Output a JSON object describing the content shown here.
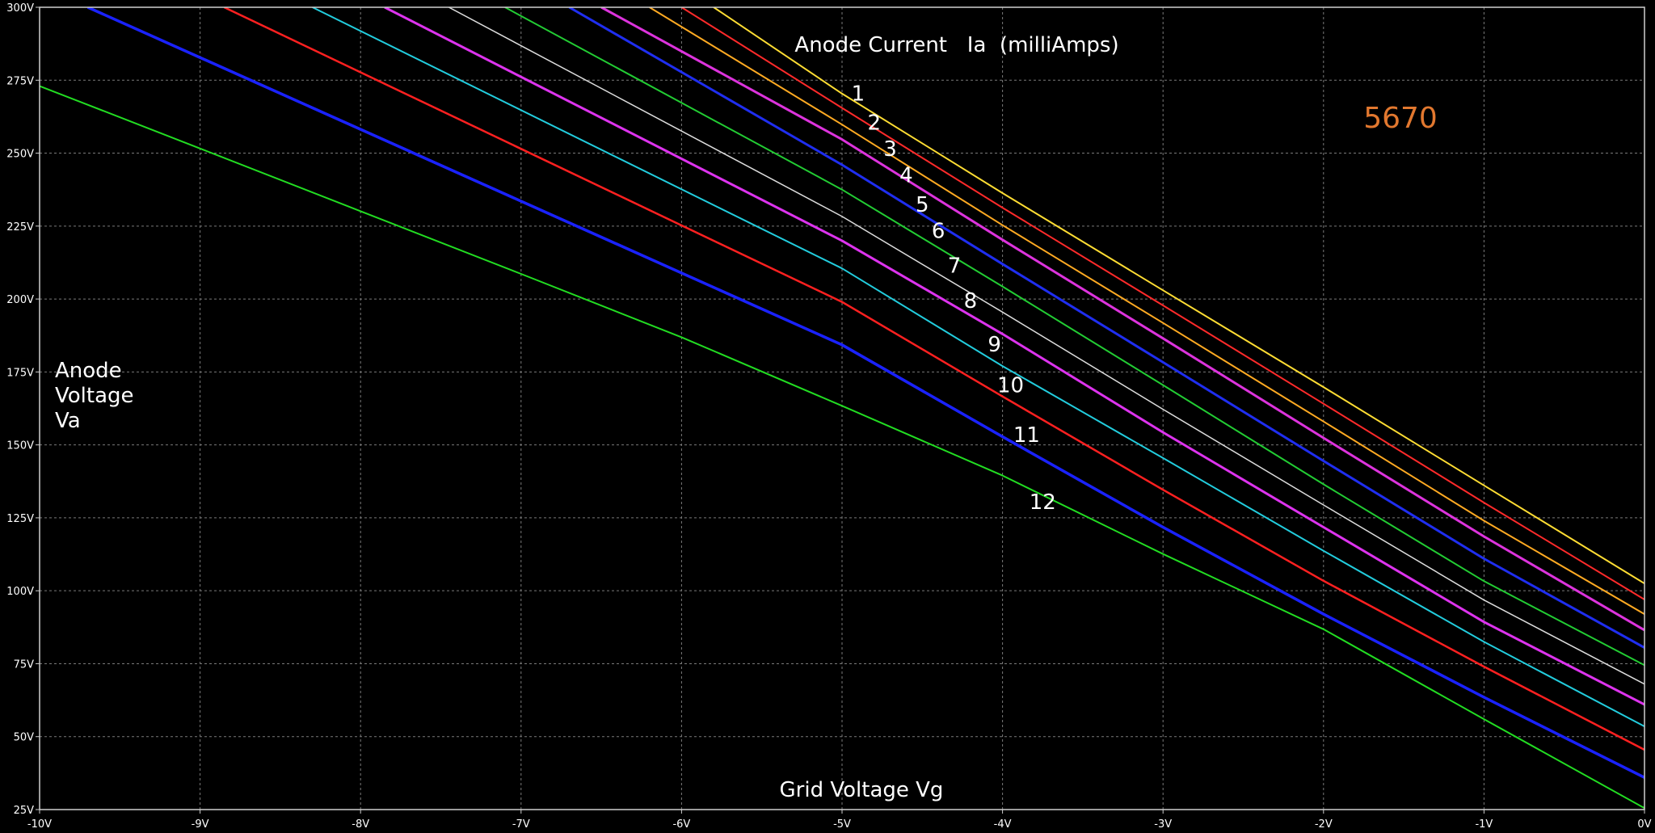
{
  "chart_data": {
    "type": "line",
    "title": "Anode Current   Ia  (milliAmps)",
    "xlabel": "Grid Voltage Vg",
    "ylabel_lines": [
      "Anode",
      "Voltage",
      "Va"
    ],
    "tube_label": "5670",
    "tube_label_color": "#e2782f",
    "background": "#000000",
    "grid": true,
    "xlim": [
      -10,
      0
    ],
    "ylim": [
      25,
      300
    ],
    "x_ticks": [
      -10,
      -9,
      -8,
      -7,
      -6,
      -5,
      -4,
      -3,
      -2,
      -1,
      0
    ],
    "x_tick_labels": [
      "-10V",
      "-9V",
      "-8V",
      "-7V",
      "-6V",
      "-5V",
      "-4V",
      "-3V",
      "-2V",
      "-1V",
      "0V"
    ],
    "y_ticks": [
      25,
      50,
      75,
      100,
      125,
      150,
      175,
      200,
      225,
      250,
      275,
      300
    ],
    "y_tick_labels": [
      "25V",
      "50V",
      "75V",
      "100V",
      "125V",
      "150V",
      "175V",
      "200V",
      "225V",
      "250V",
      "275V",
      "300V"
    ],
    "series": [
      {
        "name": "1",
        "color": "#ffdd33",
        "width": 2,
        "label_at": [
          -4.9,
          268
        ],
        "points": [
          [
            -5.8,
            300
          ],
          [
            -5,
            270.4
          ],
          [
            -4,
            236.3
          ],
          [
            -3,
            203.0
          ],
          [
            -2,
            169.8
          ],
          [
            -1,
            136.1
          ],
          [
            0,
            102.5
          ]
        ]
      },
      {
        "name": "2",
        "color": "#ff2a2a",
        "width": 2,
        "label_at": [
          -4.8,
          258
        ],
        "points": [
          [
            -6.0,
            300
          ],
          [
            -5,
            265.5
          ],
          [
            -4,
            231.3
          ],
          [
            -3,
            197.8
          ],
          [
            -2,
            164.1
          ],
          [
            -1,
            130.2
          ],
          [
            0,
            97.0
          ]
        ]
      },
      {
        "name": "3",
        "color": "#ffaa22",
        "width": 2,
        "label_at": [
          -4.7,
          249
        ],
        "points": [
          [
            -6.2,
            300
          ],
          [
            -5,
            259.8
          ],
          [
            -4,
            225.3
          ],
          [
            -3,
            191.8
          ],
          [
            -2,
            158.0
          ],
          [
            -1,
            124.0
          ],
          [
            0,
            92.0
          ]
        ]
      },
      {
        "name": "4",
        "color": "#dd33dd",
        "width": 3,
        "label_at": [
          -4.6,
          240
        ],
        "points": [
          [
            -6.5,
            300
          ],
          [
            -5,
            254.7
          ],
          [
            -4,
            220.3
          ],
          [
            -3,
            186.5
          ],
          [
            -2,
            152.4
          ],
          [
            -1,
            118.6
          ],
          [
            0,
            86.5
          ]
        ]
      },
      {
        "name": "5",
        "color": "#1f2ef0",
        "width": 3,
        "label_at": [
          -4.5,
          230
        ],
        "points": [
          [
            -6.7,
            300
          ],
          [
            -5,
            246.0
          ],
          [
            -4,
            212.0
          ],
          [
            -3,
            178.3
          ],
          [
            -2,
            144.5
          ],
          [
            -1,
            111.0
          ],
          [
            0,
            80.5
          ]
        ]
      },
      {
        "name": "6",
        "color": "#22cc33",
        "width": 2,
        "label_at": [
          -4.4,
          221
        ],
        "points": [
          [
            -7.1,
            300
          ],
          [
            -5,
            237.5
          ],
          [
            -4,
            204.3
          ],
          [
            -3,
            170.5
          ],
          [
            -2,
            136.5
          ],
          [
            -1,
            103.3
          ],
          [
            0,
            74.5
          ]
        ]
      },
      {
        "name": "7",
        "color": "#dddddd",
        "width": 1.5,
        "label_at": [
          -4.3,
          209
        ],
        "points": [
          [
            -7.45,
            300
          ],
          [
            -5,
            228.3
          ],
          [
            -4,
            195.5
          ],
          [
            -3,
            162.2
          ],
          [
            -2,
            129.4
          ],
          [
            -1,
            96.8
          ],
          [
            0,
            68.0
          ]
        ]
      },
      {
        "name": "8",
        "color": "#dd33ee",
        "width": 3,
        "label_at": [
          -4.2,
          197
        ],
        "points": [
          [
            -7.85,
            300
          ],
          [
            -5,
            220.0
          ],
          [
            -4,
            188.0
          ],
          [
            -3,
            154.3
          ],
          [
            -2,
            121.8
          ],
          [
            -1,
            89.3
          ],
          [
            0,
            61.0
          ]
        ]
      },
      {
        "name": "9",
        "color": "#22ccdd",
        "width": 2,
        "label_at": [
          -4.05,
          182
        ],
        "points": [
          [
            -8.3,
            300
          ],
          [
            -5,
            210.5
          ],
          [
            -4,
            177.0
          ],
          [
            -3,
            145.5
          ],
          [
            -2,
            113.7
          ],
          [
            -1,
            82.5
          ],
          [
            0,
            53.5
          ]
        ]
      },
      {
        "name": "10",
        "color": "#ff2020",
        "width": 2.5,
        "label_at": [
          -3.95,
          168
        ],
        "points": [
          [
            -8.85,
            300
          ],
          [
            -5,
            199.0
          ],
          [
            -4,
            166.6
          ],
          [
            -3,
            134.6
          ],
          [
            -2,
            103.4
          ],
          [
            -1,
            74.0
          ],
          [
            0,
            45.5
          ]
        ]
      },
      {
        "name": "11",
        "color": "#1a22ff",
        "width": 3.5,
        "label_at": [
          -3.85,
          151
        ],
        "points": [
          [
            -9.7,
            300
          ],
          [
            -5,
            184.3
          ],
          [
            -4,
            152.8
          ],
          [
            -3,
            121.8
          ],
          [
            -2,
            92.0
          ],
          [
            -1,
            63.5
          ],
          [
            0,
            36.0
          ]
        ]
      },
      {
        "name": "12",
        "color": "#22dd22",
        "width": 2,
        "label_at": [
          -3.75,
          128
        ],
        "points": [
          [
            -10,
            273
          ],
          [
            -9,
            251.6
          ],
          [
            -8,
            230.1
          ],
          [
            -7,
            208.6
          ],
          [
            -6,
            186.9
          ],
          [
            -5,
            163.4
          ],
          [
            -4,
            139.5
          ],
          [
            -3,
            112.6
          ],
          [
            -2,
            86.8
          ],
          [
            -1,
            56.0
          ],
          [
            0,
            25.5
          ]
        ]
      }
    ]
  }
}
